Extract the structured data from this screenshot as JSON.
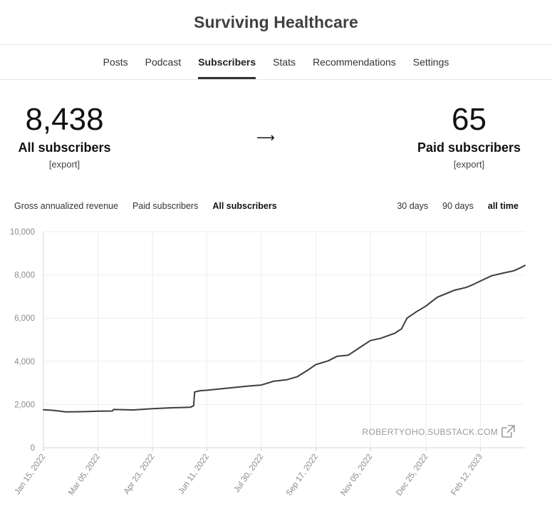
{
  "header": {
    "title": "Surviving Healthcare"
  },
  "nav": {
    "tabs": [
      {
        "label": "Posts",
        "active": false
      },
      {
        "label": "Podcast",
        "active": false
      },
      {
        "label": "Subscribers",
        "active": true
      },
      {
        "label": "Stats",
        "active": false
      },
      {
        "label": "Recommendations",
        "active": false
      },
      {
        "label": "Settings",
        "active": false
      }
    ]
  },
  "stats": {
    "all": {
      "value": "8,438",
      "label": "All subscribers",
      "export": "[export]"
    },
    "arrow": "⟶",
    "paid": {
      "value": "65",
      "label": "Paid subscribers",
      "export": "[export]"
    }
  },
  "filters": {
    "metric": [
      {
        "label": "Gross annualized revenue",
        "active": false
      },
      {
        "label": "Paid subscribers",
        "active": false
      },
      {
        "label": "All subscribers",
        "active": true
      }
    ],
    "range": [
      {
        "label": "30 days",
        "active": false
      },
      {
        "label": "90 days",
        "active": false
      },
      {
        "label": "all time",
        "active": true
      }
    ]
  },
  "watermark": {
    "text": "ROBERTYOHO.SUBSTACK.COM",
    "icon": "external-link-icon"
  },
  "chart_data": {
    "type": "line",
    "title": "",
    "xlabel": "",
    "ylabel": "",
    "ylim": [
      0,
      10000
    ],
    "yticks": [
      "10,000",
      "8,000",
      "6,000",
      "4,000",
      "2,000",
      "0"
    ],
    "ytick_values": [
      10000,
      8000,
      6000,
      4000,
      2000,
      0
    ],
    "xticks": [
      "Jan 15, 2022",
      "Mar 05, 2022",
      "Apr 23, 2022",
      "Jun 11, 2022",
      "Jul 30, 2022",
      "Sep 17, 2022",
      "Nov 05, 2022",
      "Dec 25, 2022",
      "Feb 12, 2023"
    ],
    "xlim": [
      "Jan 15, 2022",
      "Mar 24, 2023"
    ],
    "grid": true,
    "line_color": "#3d3d3d",
    "series": [
      {
        "values": [
          {
            "x": "Jan 15, 2022",
            "y": 1760
          },
          {
            "x": "Jan 24, 2022",
            "y": 1730
          },
          {
            "x": "Feb 04, 2022",
            "y": 1660
          },
          {
            "x": "Feb 12, 2022",
            "y": 1665
          },
          {
            "x": "Feb 21, 2022",
            "y": 1670
          },
          {
            "x": "Mar 05, 2022",
            "y": 1690
          },
          {
            "x": "Mar 18, 2022",
            "y": 1700
          },
          {
            "x": "Mar 19, 2022",
            "y": 1770
          },
          {
            "x": "Apr 06, 2022",
            "y": 1750
          },
          {
            "x": "Apr 23, 2022",
            "y": 1810
          },
          {
            "x": "May 12, 2022",
            "y": 1850
          },
          {
            "x": "May 27, 2022",
            "y": 1870
          },
          {
            "x": "May 30, 2022",
            "y": 1940
          },
          {
            "x": "May 31, 2022",
            "y": 2580
          },
          {
            "x": "Jun 05, 2022",
            "y": 2640
          },
          {
            "x": "Jun 11, 2022",
            "y": 2660
          },
          {
            "x": "Jun 30, 2022",
            "y": 2760
          },
          {
            "x": "Jul 20, 2022",
            "y": 2860
          },
          {
            "x": "Jul 30, 2022",
            "y": 2900
          },
          {
            "x": "Aug 10, 2022",
            "y": 3080
          },
          {
            "x": "Aug 22, 2022",
            "y": 3150
          },
          {
            "x": "Aug 31, 2022",
            "y": 3280
          },
          {
            "x": "Sep 10, 2022",
            "y": 3600
          },
          {
            "x": "Sep 17, 2022",
            "y": 3850
          },
          {
            "x": "Sep 28, 2022",
            "y": 4020
          },
          {
            "x": "Oct 06, 2022",
            "y": 4230
          },
          {
            "x": "Oct 16, 2022",
            "y": 4280
          },
          {
            "x": "Oct 26, 2022",
            "y": 4620
          },
          {
            "x": "Nov 05, 2022",
            "y": 4960
          },
          {
            "x": "Nov 14, 2022",
            "y": 5060
          },
          {
            "x": "Nov 27, 2022",
            "y": 5300
          },
          {
            "x": "Dec 03, 2022",
            "y": 5500
          },
          {
            "x": "Dec 08, 2022",
            "y": 6000
          },
          {
            "x": "Dec 16, 2022",
            "y": 6280
          },
          {
            "x": "Dec 25, 2022",
            "y": 6560
          },
          {
            "x": "Jan 04, 2023",
            "y": 6960
          },
          {
            "x": "Jan 19, 2023",
            "y": 7280
          },
          {
            "x": "Jan 30, 2023",
            "y": 7420
          },
          {
            "x": "Feb 04, 2023",
            "y": 7520
          },
          {
            "x": "Feb 12, 2023",
            "y": 7720
          },
          {
            "x": "Feb 22, 2023",
            "y": 7960
          },
          {
            "x": "Mar 05, 2023",
            "y": 8090
          },
          {
            "x": "Mar 14, 2023",
            "y": 8190
          },
          {
            "x": "Mar 20, 2023",
            "y": 8330
          },
          {
            "x": "Mar 24, 2023",
            "y": 8438
          }
        ]
      }
    ]
  }
}
